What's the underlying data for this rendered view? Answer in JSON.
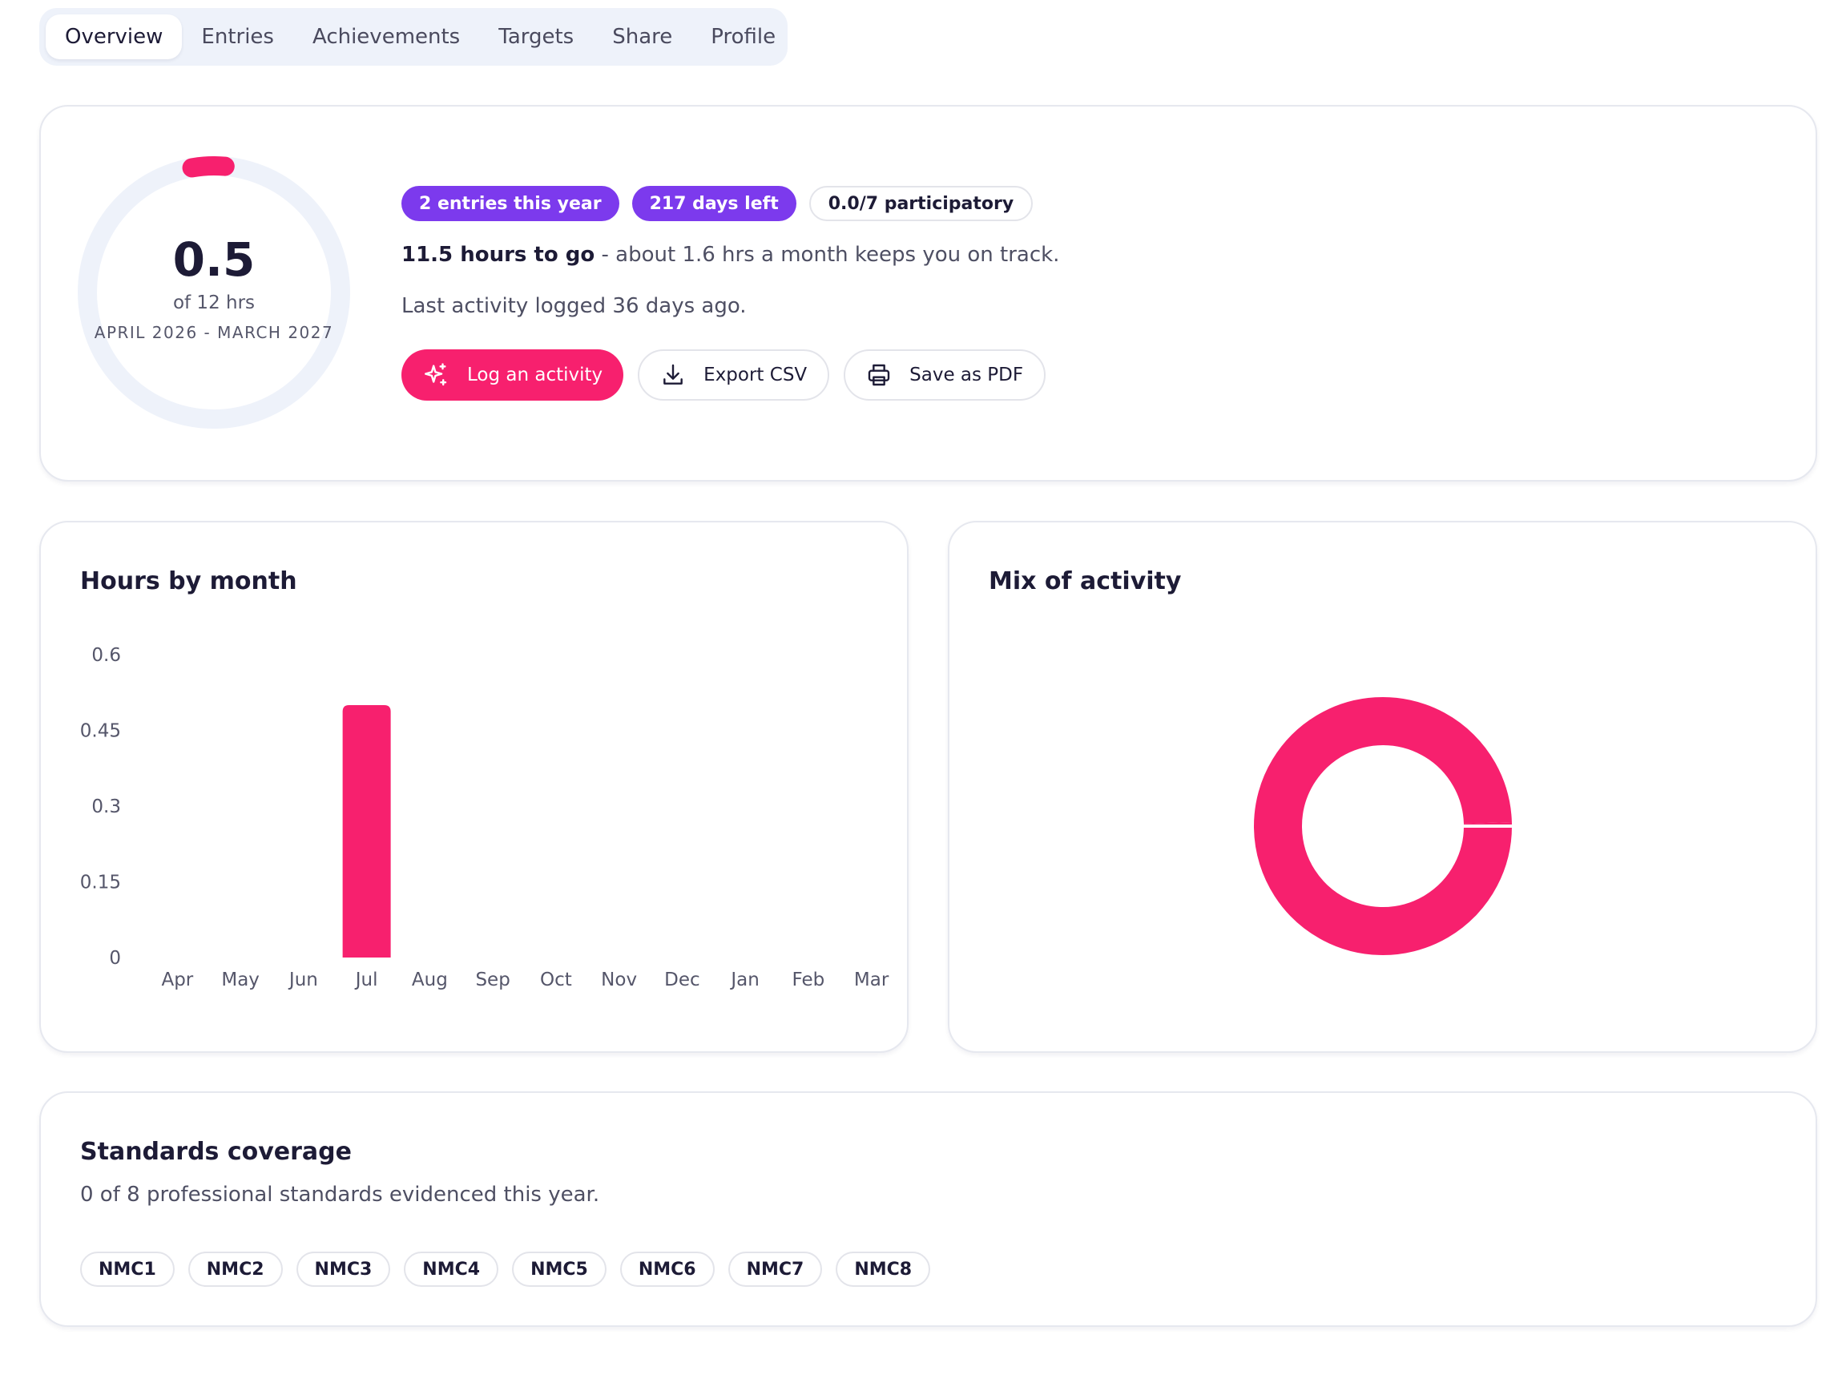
{
  "tabs": [
    {
      "label": "Overview",
      "active": true
    },
    {
      "label": "Entries",
      "active": false
    },
    {
      "label": "Achievements",
      "active": false
    },
    {
      "label": "Targets",
      "active": false
    },
    {
      "label": "Share",
      "active": false
    },
    {
      "label": "Profile",
      "active": false
    }
  ],
  "summary": {
    "value": "0.5",
    "of_label": "of 12 hrs",
    "period": "APRIL 2026 - MARCH 2027",
    "progress_fraction": 0.0417,
    "badges": {
      "entries": "2 entries this year",
      "days_left": "217 days left",
      "participatory": "0.0/7 participatory"
    },
    "goal_bold": "11.5 hours to go",
    "goal_rest": " - about 1.6 hrs a month keeps you on track.",
    "last_activity": "Last activity logged 36 days ago.",
    "actions": {
      "log": "Log an activity",
      "export": "Export CSV",
      "pdf": "Save as PDF"
    }
  },
  "colors": {
    "accent": "#f7206e",
    "purple": "#7c3aed",
    "ring_track": "#eef2fa"
  },
  "hours_by_month": {
    "title": "Hours by month"
  },
  "mix": {
    "title": "Mix of activity"
  },
  "chart_data": [
    {
      "type": "bar",
      "title": "Hours by month",
      "categories": [
        "Apr",
        "May",
        "Jun",
        "Jul",
        "Aug",
        "Sep",
        "Oct",
        "Nov",
        "Dec",
        "Jan",
        "Feb",
        "Mar"
      ],
      "values": [
        0,
        0,
        0,
        0.5,
        0,
        0,
        0,
        0,
        0,
        0,
        0,
        0
      ],
      "yticks": [
        "0",
        "0.15",
        "0.3",
        "0.45",
        "0.6"
      ],
      "ylim": [
        0,
        0.6
      ],
      "xlabel": "",
      "ylabel": "",
      "grid": false
    },
    {
      "type": "pie",
      "title": "Mix of activity",
      "values": [
        99.5,
        0.5
      ],
      "donut": true
    }
  ],
  "standards": {
    "title": "Standards coverage",
    "subtitle": "0 of 8 professional standards evidenced this year.",
    "items": [
      "NMC1",
      "NMC2",
      "NMC3",
      "NMC4",
      "NMC5",
      "NMC6",
      "NMC7",
      "NMC8"
    ]
  }
}
